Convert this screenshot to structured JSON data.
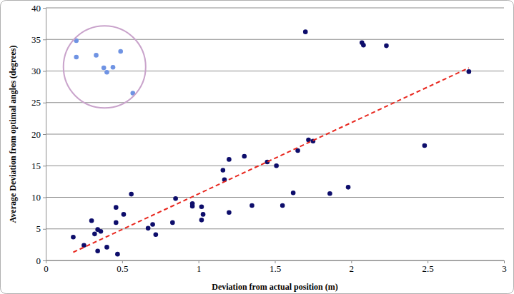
{
  "chart_data": {
    "type": "scatter",
    "x_label": "Deviation from actual position (m)",
    "y_label": "Average Deviation from optimal angles (degrees)",
    "xlim": [
      0,
      3
    ],
    "xticks": [
      0,
      0.5,
      1,
      1.5,
      2,
      2.5,
      3
    ],
    "ylim": [
      0,
      40
    ],
    "yticks": [
      0,
      5,
      10,
      15,
      20,
      25,
      30,
      35,
      40
    ],
    "grid": "y",
    "series": [
      {
        "type": "scatter",
        "marker": "circle",
        "color": "#0d0d6b",
        "x": [
          0.18,
          0.25,
          0.3,
          0.32,
          0.34,
          0.36,
          0.34,
          0.4,
          0.46,
          0.46,
          0.47,
          0.51,
          0.56,
          0.67,
          0.7,
          0.72,
          0.83,
          0.85,
          0.96,
          0.96,
          1.02,
          1.03,
          1.02,
          1.16,
          1.17,
          1.2,
          1.2,
          1.3,
          1.35,
          1.45,
          1.51,
          1.55,
          1.62,
          1.65,
          1.7,
          1.72,
          1.75,
          1.86,
          1.98,
          2.07,
          2.08,
          2.23,
          2.48,
          2.77
        ],
        "values": [
          3.7,
          2.4,
          6.3,
          4.2,
          4.9,
          4.6,
          1.5,
          2.1,
          8.4,
          6.0,
          1.0,
          7.3,
          10.5,
          5.1,
          5.7,
          4.1,
          6.0,
          9.8,
          9.0,
          8.6,
          8.5,
          7.3,
          6.4,
          14.3,
          12.8,
          16.0,
          7.6,
          16.5,
          8.7,
          15.6,
          15.0,
          8.7,
          10.7,
          17.4,
          36.2,
          19.1,
          18.9,
          10.6,
          11.6,
          34.5,
          34.1,
          34.0,
          18.2,
          29.9
        ]
      },
      {
        "type": "scatter",
        "marker": "circle",
        "color": "#6f93e3",
        "x": [
          0.2,
          0.2,
          0.33,
          0.49,
          0.38,
          0.44,
          0.4,
          0.57
        ],
        "values": [
          34.8,
          32.2,
          32.5,
          33.1,
          30.5,
          30.6,
          29.8,
          26.5
        ]
      },
      {
        "type": "line",
        "line_style": "dashed",
        "color": "#e8271e",
        "x": [
          0.18,
          2.77
        ],
        "values": [
          1.3,
          30.5
        ]
      }
    ]
  }
}
